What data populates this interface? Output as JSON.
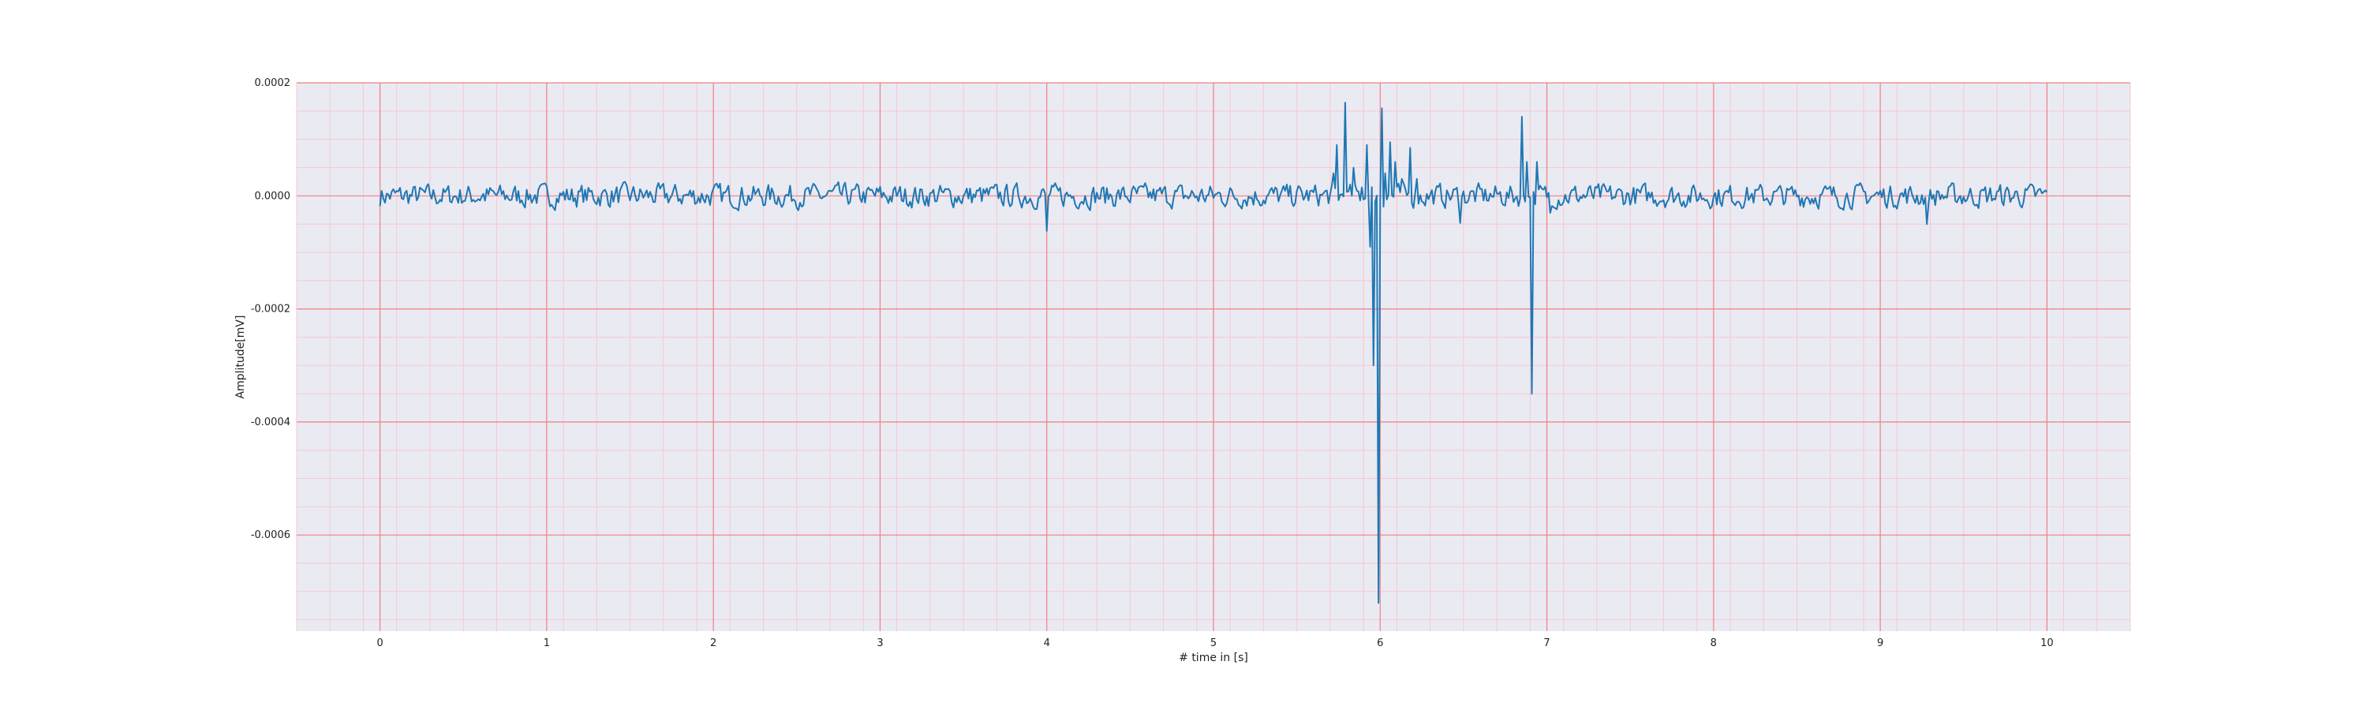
{
  "chart_data": {
    "type": "line",
    "title": "",
    "xlabel": "# time in [s]",
    "ylabel": "Amplitude[mV]",
    "xlim": [
      -0.5,
      10.5
    ],
    "ylim": [
      -0.00077,
      0.0002
    ],
    "xticks": [
      0,
      1,
      2,
      3,
      4,
      5,
      6,
      7,
      8,
      9,
      10
    ],
    "xtick_labels": [
      "0",
      "1",
      "2",
      "3",
      "4",
      "5",
      "6",
      "7",
      "8",
      "9",
      "10"
    ],
    "yticks": [
      0.0002,
      0.0,
      -0.0002,
      -0.0004,
      -0.0006
    ],
    "ytick_labels": [
      "0.0002",
      "0.0000",
      "-0.0002",
      "-0.0004",
      "-0.0006"
    ],
    "grid": {
      "major": true,
      "minor": true,
      "major_color": "#f08080",
      "minor_color": "#f7c8cf"
    },
    "background": "#eaeaf2",
    "series": [
      {
        "color": "#1f77b4",
        "sample_rate_hz": 100,
        "x_start": 0,
        "x_end": 10,
        "baseline": {
          "noise_amplitude": 2e-05,
          "seed": 7
        },
        "events": [
          {
            "x": 4.0,
            "y": -6.2e-05
          },
          {
            "x": 5.72,
            "y": 4e-05
          },
          {
            "x": 5.74,
            "y": 9e-05
          },
          {
            "x": 5.79,
            "y": 0.000165
          },
          {
            "x": 5.84,
            "y": 5e-05
          },
          {
            "x": 5.89,
            "y": 1.5e-05
          },
          {
            "x": 5.92,
            "y": 9e-05
          },
          {
            "x": 5.94,
            "y": -9e-05
          },
          {
            "x": 5.96,
            "y": -0.0003
          },
          {
            "x": 5.99,
            "y": -0.00072
          },
          {
            "x": 6.01,
            "y": 0.000155
          },
          {
            "x": 6.03,
            "y": 4e-05
          },
          {
            "x": 6.06,
            "y": 9.5e-05
          },
          {
            "x": 6.09,
            "y": 6e-05
          },
          {
            "x": 6.13,
            "y": 3e-05
          },
          {
            "x": 6.18,
            "y": 8.5e-05
          },
          {
            "x": 6.22,
            "y": 3e-05
          },
          {
            "x": 6.48,
            "y": -4.8e-05
          },
          {
            "x": 6.85,
            "y": 0.00014
          },
          {
            "x": 6.88,
            "y": 6e-05
          },
          {
            "x": 6.91,
            "y": -0.00035
          },
          {
            "x": 6.94,
            "y": 6e-05
          },
          {
            "x": 7.02,
            "y": -3e-05
          },
          {
            "x": 9.28,
            "y": -5e-05
          }
        ]
      }
    ]
  }
}
